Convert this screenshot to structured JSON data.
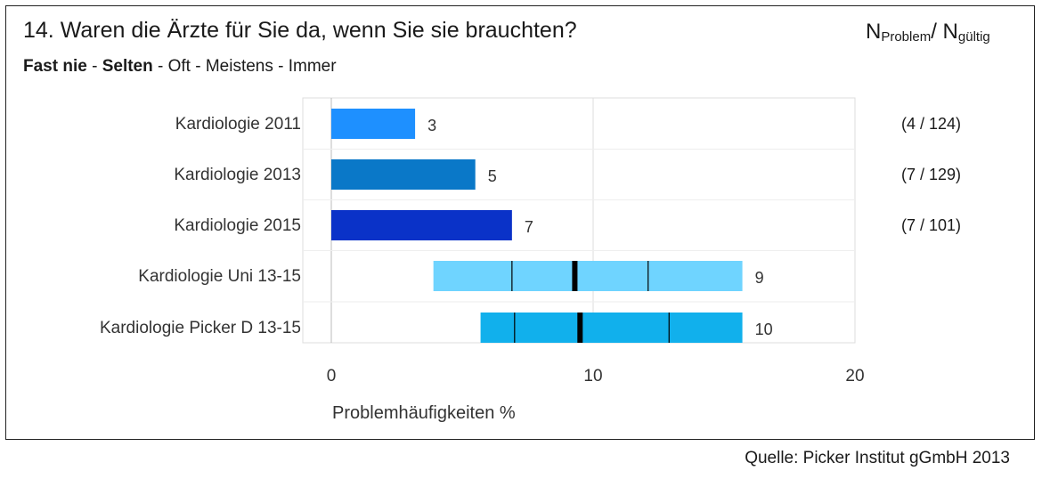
{
  "header": {
    "title": "14. Waren die Ärzte für Sie da, wenn Sie sie brauchten?",
    "scale_bold_1": "Fast nie",
    "scale_sep_1": " - ",
    "scale_bold_2": "Selten",
    "scale_rest": " - Oft - Meistens - Immer",
    "n_main_1": "N",
    "n_sub_1": "Problem",
    "n_slash": "/ ",
    "n_main_2": "N",
    "n_sub_2": "gültig"
  },
  "footer": {
    "source": "Quelle: Picker Institut gGmbH 2013"
  },
  "chart_data": {
    "type": "bar",
    "orientation": "horizontal",
    "categories": [
      "Kardiologie 2011",
      "Kardiologie 2013",
      "Kardiologie 2015",
      "Kardiologie Uni 13-15",
      "Kardiologie Picker D 13-15"
    ],
    "values": [
      3,
      5,
      7,
      null,
      null
    ],
    "bar_values": [
      3.2,
      5.5,
      6.9,
      null,
      null
    ],
    "value_labels": [
      "3",
      "5",
      "7",
      "9",
      "10"
    ],
    "n_labels": [
      "(4 / 124)",
      "(7 / 129)",
      "(7 / 101)",
      "",
      ""
    ],
    "bar_colors": [
      "#1e90ff",
      "#0a78c8",
      "#0a32c8",
      "#6fd4ff",
      "#11b0ec"
    ],
    "ranges": [
      null,
      null,
      null,
      {
        "min": 3.9,
        "q1": 6.9,
        "median": 9.3,
        "q3": 12.1,
        "max": 15.7
      },
      {
        "min": 5.7,
        "q1": 7.0,
        "median": 9.5,
        "q3": 12.9,
        "max": 15.7
      }
    ],
    "xlabel": "Problemhäufigkeiten %",
    "xlim": [
      0,
      20
    ],
    "xticks": [
      0,
      10,
      20
    ],
    "xtick_labels": [
      "0",
      "10",
      "20"
    ],
    "grid": true
  }
}
